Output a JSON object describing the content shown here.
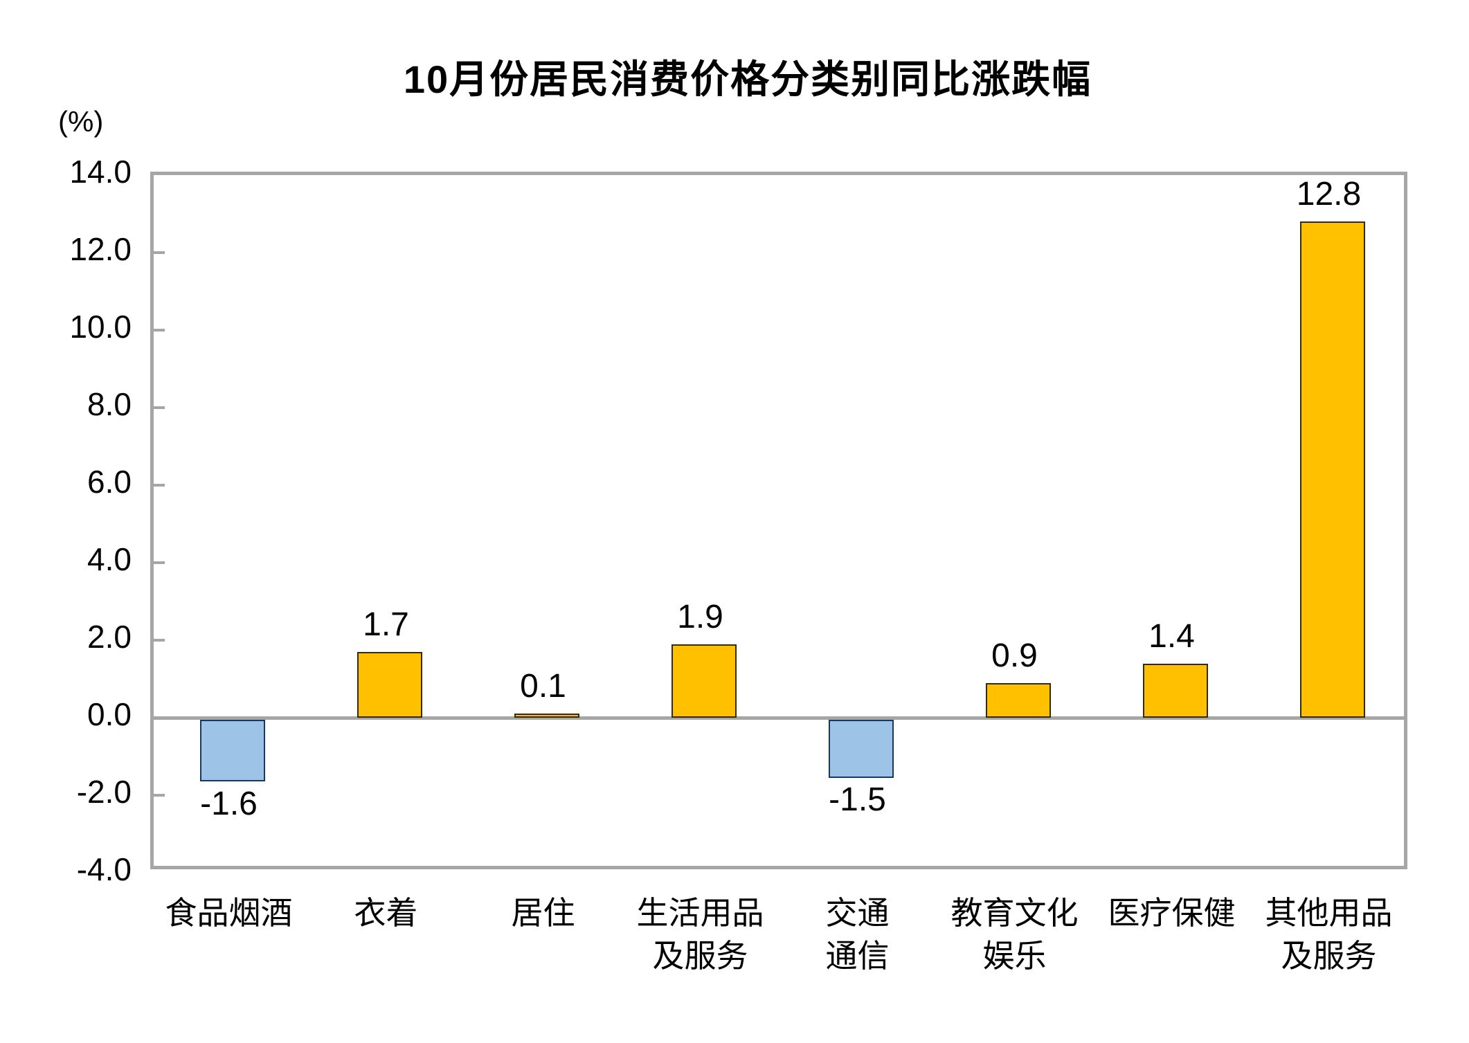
{
  "chart_data": {
    "type": "bar",
    "title": "10月份居民消费价格分类别同比涨跌幅",
    "unit_label": "(%)",
    "categories": [
      "食品烟酒",
      "衣着",
      "居住",
      "生活用品\n及服务",
      "交通\n通信",
      "教育文化\n娱乐",
      "医疗保健",
      "其他用品\n及服务"
    ],
    "values": [
      -1.6,
      1.7,
      0.1,
      1.9,
      -1.5,
      0.9,
      1.4,
      12.8
    ],
    "value_labels": [
      "-1.6",
      "1.7",
      "0.1",
      "1.9",
      "-1.5",
      "0.9",
      "1.4",
      "12.8"
    ],
    "ylim": [
      -4.0,
      14.0
    ],
    "ytick_step": 2.0,
    "yticks": [
      "14.0",
      "12.0",
      "10.0",
      "8.0",
      "6.0",
      "4.0",
      "2.0",
      "0.0",
      "-2.0",
      "-4.0"
    ],
    "grid": "off",
    "legend": "none",
    "colors": {
      "positive_fill": "#FFC000",
      "positive_border": "#332B00",
      "negative_fill": "#9DC3E6",
      "negative_border": "#17375E",
      "axis_frame": "#A6A6A6",
      "text": "#000000",
      "background": "#FFFFFF"
    }
  }
}
